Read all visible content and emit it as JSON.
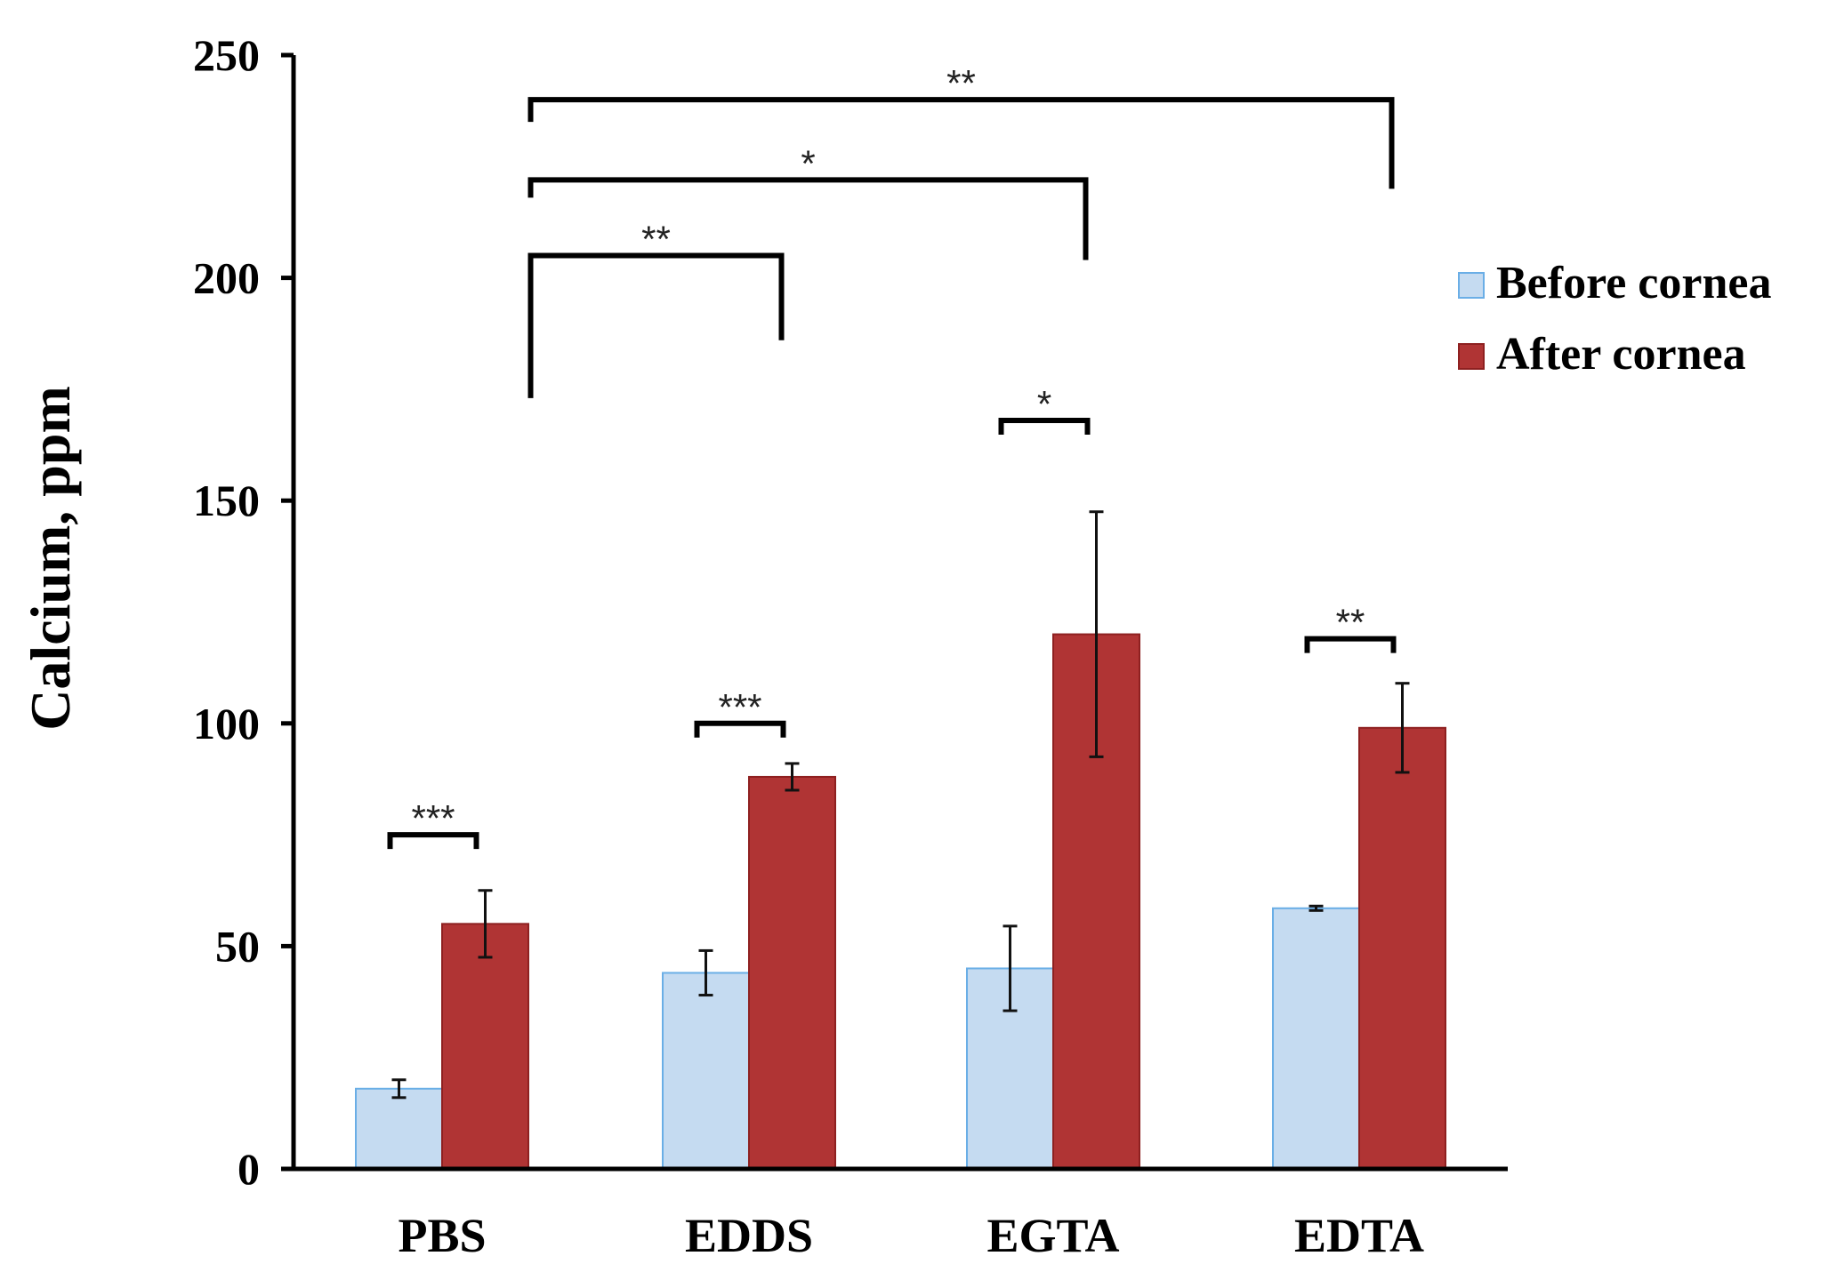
{
  "chart_data": {
    "type": "bar",
    "title": "",
    "xlabel": "",
    "ylabel": "Calcium, ppm",
    "ylim": [
      0,
      250
    ],
    "yticks": [
      0,
      50,
      100,
      150,
      200,
      250
    ],
    "categories": [
      "PBS",
      "EDDS",
      "EGTA",
      "EDTA"
    ],
    "series": [
      {
        "name": "Before cornea",
        "color": "#C5DBF1",
        "edge": "#6AAEE6",
        "values": [
          18,
          44,
          45,
          58.5
        ],
        "errors": [
          2,
          5,
          9.5,
          0.5
        ]
      },
      {
        "name": "After cornea",
        "color": "#B03434",
        "edge": "#8E2020",
        "values": [
          55,
          88,
          120,
          99
        ],
        "errors": [
          7.5,
          3,
          27.5,
          10
        ]
      }
    ],
    "legend": {
      "position": "top-right",
      "entries": [
        "Before cornea",
        "After cornea"
      ]
    },
    "grid": false,
    "significance": [
      {
        "type": "pair",
        "category": "PBS",
        "label": "***",
        "level": 75
      },
      {
        "type": "pair",
        "category": "EDDS",
        "label": "***",
        "level": 100
      },
      {
        "type": "pair",
        "category": "EGTA",
        "label": "*",
        "level": 168
      },
      {
        "type": "pair",
        "category": "EDTA",
        "label": "**",
        "level": 119
      },
      {
        "type": "compare",
        "from": "PBS",
        "to": "EDDS",
        "label": "**",
        "level": 205,
        "left_drop": 173,
        "right_drop": 186
      },
      {
        "type": "compare",
        "from": "PBS",
        "to": "EGTA",
        "label": "*",
        "level": 222,
        "left_drop": 218,
        "right_drop": 204
      },
      {
        "type": "compare",
        "from": "PBS",
        "to": "EDTA",
        "label": "**",
        "level": 240,
        "left_drop": 235,
        "right_drop": 220
      }
    ]
  }
}
